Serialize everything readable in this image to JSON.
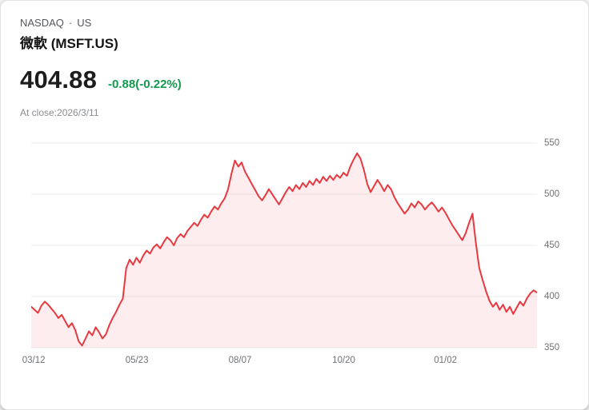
{
  "header": {
    "exchange": "NASDAQ",
    "separator": "·",
    "region": "US",
    "name": "微軟 (MSFT.US)",
    "price": "404.88",
    "change": "-0.88(-0.22%)",
    "close_note": "At close:2026/3/11"
  },
  "colors": {
    "change_green": "#149a4e",
    "line_red": "#e8383f",
    "fill_pink": "rgba(232,56,63,0.09)",
    "grid_gray": "#ebebeb",
    "axis_text": "#6f7276"
  },
  "chart_data": {
    "type": "area",
    "title": "微軟 (MSFT.US)",
    "xlabel": "",
    "ylabel": "",
    "ylim": [
      350,
      550
    ],
    "y_ticks": [
      550,
      500,
      450,
      400,
      350
    ],
    "y_axis_side": "right",
    "grid": true,
    "x_ticks": [
      {
        "label": "03/12",
        "pos": 0.005
      },
      {
        "label": "05/23",
        "pos": 0.209
      },
      {
        "label": "08/07",
        "pos": 0.413
      },
      {
        "label": "10/20",
        "pos": 0.618
      },
      {
        "label": "01/02",
        "pos": 0.819
      }
    ],
    "line_color": "#e8383f",
    "fill_color": "rgba(232,56,63,0.09)",
    "grid_color": "#ebebeb",
    "series": [
      {
        "name": "MSFT.US",
        "values": [
          390,
          387,
          384,
          391,
          395,
          392,
          388,
          384,
          379,
          382,
          376,
          370,
          374,
          367,
          356,
          352,
          359,
          366,
          362,
          370,
          365,
          359,
          363,
          372,
          379,
          385,
          392,
          398,
          428,
          436,
          431,
          438,
          433,
          440,
          445,
          442,
          448,
          451,
          447,
          453,
          458,
          455,
          450,
          457,
          461,
          458,
          464,
          468,
          472,
          469,
          475,
          480,
          477,
          483,
          488,
          485,
          491,
          496,
          505,
          520,
          533,
          527,
          531,
          522,
          516,
          510,
          504,
          498,
          494,
          499,
          505,
          500,
          495,
          490,
          496,
          502,
          507,
          503,
          509,
          505,
          511,
          507,
          513,
          509,
          515,
          511,
          517,
          513,
          518,
          514,
          519,
          516,
          521,
          518,
          527,
          534,
          540,
          535,
          524,
          510,
          502,
          508,
          514,
          509,
          503,
          509,
          505,
          497,
          491,
          486,
          481,
          485,
          491,
          487,
          493,
          490,
          485,
          489,
          492,
          488,
          483,
          487,
          482,
          476,
          470,
          465,
          460,
          455,
          462,
          472,
          481,
          452,
          428,
          416,
          405,
          396,
          390,
          394,
          387,
          392,
          385,
          390,
          383,
          389,
          395,
          391,
          398,
          403,
          406,
          404
        ]
      }
    ]
  }
}
